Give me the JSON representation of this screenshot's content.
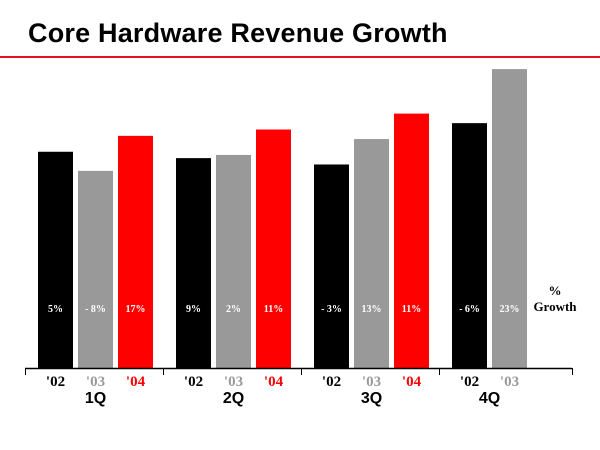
{
  "slide": {
    "title": "Core Hardware Revenue Growth",
    "growth_note_symbol": "%",
    "growth_note_word": "Growth"
  },
  "colors": {
    "y02": "#000000",
    "y03": "#999999",
    "y04": "#ff0000",
    "rule": "#e8141b"
  },
  "chart_data": {
    "type": "bar",
    "title": "Core Hardware Revenue Growth",
    "quarters": [
      "1Q",
      "2Q",
      "3Q",
      "4Q"
    ],
    "series_labels": [
      "'02",
      "'03",
      "'04"
    ],
    "ylim": [
      0,
      100
    ],
    "groups": [
      {
        "quarter": "1Q",
        "bars": [
          {
            "year": "'02",
            "value": 68,
            "growth": "5%"
          },
          {
            "year": "'03",
            "value": 62,
            "growth": "- 8%"
          },
          {
            "year": "'04",
            "value": 73,
            "growth": "17%"
          }
        ]
      },
      {
        "quarter": "2Q",
        "bars": [
          {
            "year": "'02",
            "value": 66,
            "growth": "9%"
          },
          {
            "year": "'03",
            "value": 67,
            "growth": "2%"
          },
          {
            "year": "'04",
            "value": 75,
            "growth": "11%"
          }
        ]
      },
      {
        "quarter": "3Q",
        "bars": [
          {
            "year": "'02",
            "value": 64,
            "growth": "- 3%"
          },
          {
            "year": "'03",
            "value": 72,
            "growth": "13%"
          },
          {
            "year": "'04",
            "value": 80,
            "growth": "11%"
          }
        ]
      },
      {
        "quarter": "4Q",
        "bars": [
          {
            "year": "'02",
            "value": 77,
            "growth": "- 6%"
          },
          {
            "year": "'03",
            "value": 94,
            "growth": "23%"
          }
        ]
      }
    ]
  }
}
